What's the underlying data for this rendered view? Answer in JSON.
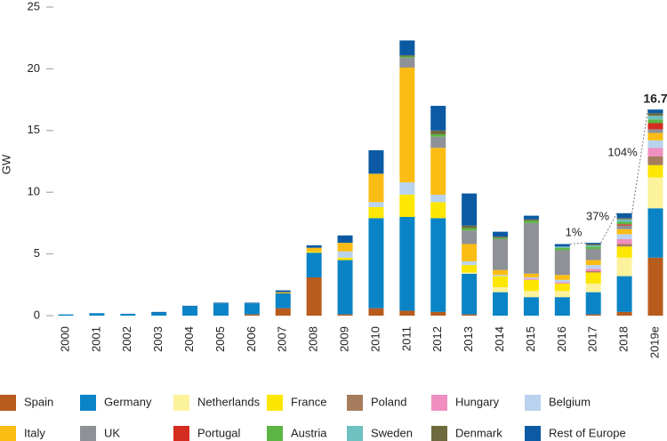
{
  "chart_data": {
    "type": "stacked_bar",
    "y_label": "GW",
    "categories": [
      "2000",
      "2001",
      "2002",
      "2003",
      "2004",
      "2005",
      "2006",
      "2007",
      "2008",
      "2009",
      "2010",
      "2011",
      "2012",
      "2013",
      "2014",
      "2015",
      "2016",
      "2017",
      "2018",
      "2019e"
    ],
    "ylim": [
      0,
      25
    ],
    "yticks": [
      0,
      5,
      10,
      15,
      20,
      25
    ],
    "series": [
      {
        "name": "Spain",
        "color": "#b85c1e",
        "values": [
          0,
          0,
          0,
          0,
          0,
          0,
          0.1,
          0.6,
          3.1,
          0.1,
          0.6,
          0.4,
          0.3,
          0.1,
          0,
          0,
          0,
          0.1,
          0.3,
          4.7
        ]
      },
      {
        "name": "Germany",
        "color": "#0a84c6",
        "values": [
          0.1,
          0.2,
          0.15,
          0.25,
          0.75,
          1.0,
          0.9,
          1.2,
          2.0,
          4.4,
          7.3,
          7.6,
          7.6,
          3.3,
          1.9,
          1.5,
          1.5,
          1.8,
          2.9,
          4.0
        ]
      },
      {
        "name": "Netherlands",
        "color": "#fdf29c",
        "values": [
          0,
          0,
          0,
          0,
          0,
          0,
          0,
          0,
          0,
          0,
          0,
          0,
          0,
          0.1,
          0.4,
          0.5,
          0.5,
          0.7,
          1.5,
          2.5
        ]
      },
      {
        "name": "France",
        "color": "#fde600",
        "values": [
          0,
          0,
          0,
          0,
          0,
          0,
          0,
          0,
          0.1,
          0.2,
          0.9,
          1.8,
          1.3,
          0.6,
          0.9,
          0.9,
          0.6,
          0.9,
          0.9,
          1.0
        ]
      },
      {
        "name": "Poland",
        "color": "#a67c5c",
        "values": [
          0,
          0,
          0,
          0,
          0,
          0,
          0,
          0,
          0,
          0,
          0,
          0,
          0,
          0,
          0,
          0,
          0,
          0.1,
          0.2,
          0.7
        ]
      },
      {
        "name": "Hungary",
        "color": "#ef8fbf",
        "values": [
          0,
          0,
          0,
          0,
          0,
          0,
          0,
          0,
          0,
          0,
          0,
          0,
          0,
          0,
          0,
          0.1,
          0.1,
          0.2,
          0.4,
          0.7
        ]
      },
      {
        "name": "Belgium",
        "color": "#b9d3ee",
        "values": [
          0,
          0,
          0,
          0,
          0,
          0,
          0,
          0,
          0,
          0.5,
          0.4,
          1.0,
          0.6,
          0.3,
          0.1,
          0.1,
          0.2,
          0.3,
          0.4,
          0.6
        ]
      },
      {
        "name": "Italy",
        "color": "#fbbc14",
        "values": [
          0,
          0,
          0,
          0,
          0,
          0,
          0,
          0.1,
          0.3,
          0.7,
          2.3,
          9.3,
          3.8,
          1.4,
          0.4,
          0.3,
          0.4,
          0.4,
          0.4,
          0.6
        ]
      },
      {
        "name": "UK",
        "color": "#8e9196",
        "values": [
          0,
          0,
          0,
          0,
          0,
          0,
          0,
          0,
          0,
          0,
          0,
          0.8,
          0.9,
          1.1,
          2.5,
          4.1,
          2.0,
          0.9,
          0.3,
          0.3
        ]
      },
      {
        "name": "Portugal",
        "color": "#d42c20",
        "values": [
          0,
          0,
          0,
          0,
          0,
          0,
          0,
          0,
          0,
          0,
          0,
          0,
          0,
          0,
          0,
          0,
          0,
          0,
          0.1,
          0.5
        ]
      },
      {
        "name": "Austria",
        "color": "#5cb544",
        "values": [
          0,
          0,
          0,
          0,
          0,
          0,
          0,
          0,
          0,
          0,
          0,
          0.1,
          0.2,
          0.2,
          0.1,
          0.2,
          0.2,
          0.2,
          0.2,
          0.3
        ]
      },
      {
        "name": "Sweden",
        "color": "#6fc0c0",
        "values": [
          0,
          0,
          0,
          0,
          0,
          0,
          0,
          0,
          0,
          0,
          0,
          0,
          0,
          0,
          0,
          0,
          0.1,
          0.1,
          0.2,
          0.3
        ]
      },
      {
        "name": "Denmark",
        "color": "#6f6a3d",
        "values": [
          0,
          0,
          0,
          0,
          0,
          0,
          0,
          0,
          0,
          0,
          0,
          0.1,
          0.3,
          0.2,
          0.1,
          0.1,
          0,
          0.1,
          0.1,
          0.2
        ]
      },
      {
        "name": "Rest of Europe",
        "color": "#0b5aa3",
        "values": [
          0,
          0,
          0,
          0.05,
          0.05,
          0.05,
          0.05,
          0.15,
          0.2,
          0.6,
          1.9,
          1.2,
          2.0,
          2.6,
          0.4,
          0.3,
          0.2,
          0.1,
          0.4,
          0.3
        ]
      }
    ],
    "annotations": [
      {
        "text": "1%"
      },
      {
        "text": "37%"
      },
      {
        "text": "104%"
      },
      {
        "text": "16.7"
      }
    ]
  }
}
